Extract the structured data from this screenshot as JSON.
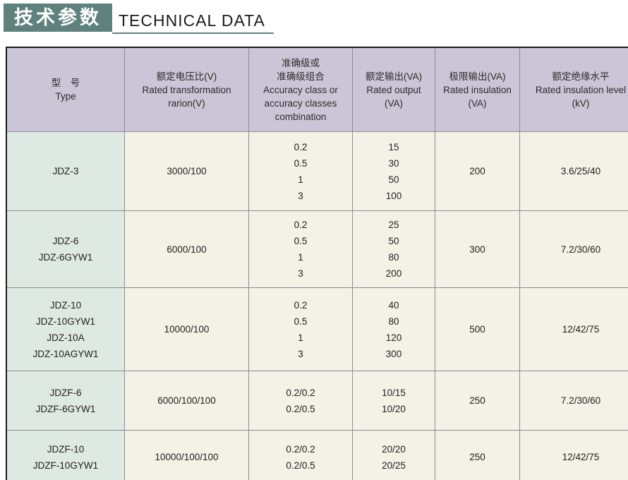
{
  "header": {
    "title_cn": "技术参数",
    "title_en": "TECHNICAL DATA",
    "accent_color": "#5e817e"
  },
  "table": {
    "columns": [
      {
        "id": "type",
        "lines": [
          "型　号",
          "Type"
        ]
      },
      {
        "id": "ratio",
        "lines": [
          "额定电压比(V)",
          "Rated transformation",
          "rarion(V)"
        ]
      },
      {
        "id": "accuracy",
        "lines": [
          "准确级或",
          "准确级组合",
          "Accuracy class or",
          "accuracy classes",
          "combination"
        ]
      },
      {
        "id": "output",
        "lines": [
          "额定输出(VA)",
          "Rated output",
          "(VA)"
        ]
      },
      {
        "id": "limit",
        "lines": [
          "极限输出(VA)",
          "Rated insulation",
          "(VA)"
        ]
      },
      {
        "id": "insulation",
        "lines": [
          "额定绝缘水平",
          "Rated insulation level",
          "(kV)"
        ]
      }
    ],
    "rows": [
      {
        "type": [
          "JDZ-3"
        ],
        "ratio": [
          "3000/100"
        ],
        "accuracy": [
          "0.2",
          "0.5",
          "1",
          "3"
        ],
        "output": [
          "15",
          "30",
          "50",
          "100"
        ],
        "limit": [
          "200"
        ],
        "insulation": [
          "3.6/25/40"
        ]
      },
      {
        "type": [
          "JDZ-6",
          "JDZ-6GYW1"
        ],
        "ratio": [
          "6000/100"
        ],
        "accuracy": [
          "0.2",
          "0.5",
          "1",
          "3"
        ],
        "output": [
          "25",
          "50",
          "80",
          "200"
        ],
        "limit": [
          "300"
        ],
        "insulation": [
          "7.2/30/60"
        ]
      },
      {
        "type": [
          "JDZ-10",
          "JDZ-10GYW1",
          "JDZ-10A",
          "JDZ-10AGYW1"
        ],
        "ratio": [
          "10000/100"
        ],
        "accuracy": [
          "0.2",
          "0.5",
          "1",
          "3"
        ],
        "output": [
          "40",
          "80",
          "120",
          "300"
        ],
        "limit": [
          "500"
        ],
        "insulation": [
          "12/42/75"
        ]
      },
      {
        "type": [
          "JDZF-6",
          "JDZF-6GYW1"
        ],
        "ratio": [
          "6000/100/100"
        ],
        "accuracy": [
          "0.2/0.2",
          "0.2/0.5"
        ],
        "output": [
          "10/15",
          "10/20"
        ],
        "limit": [
          "250"
        ],
        "insulation": [
          "7.2/30/60"
        ]
      },
      {
        "type": [
          "JDZF-10",
          "JDZF-10GYW1"
        ],
        "ratio": [
          "10000/100/100"
        ],
        "accuracy": [
          "0.2/0.2",
          "0.2/0.5"
        ],
        "output": [
          "20/20",
          "20/25"
        ],
        "limit": [
          "250"
        ],
        "insulation": [
          "12/42/75"
        ]
      }
    ]
  }
}
